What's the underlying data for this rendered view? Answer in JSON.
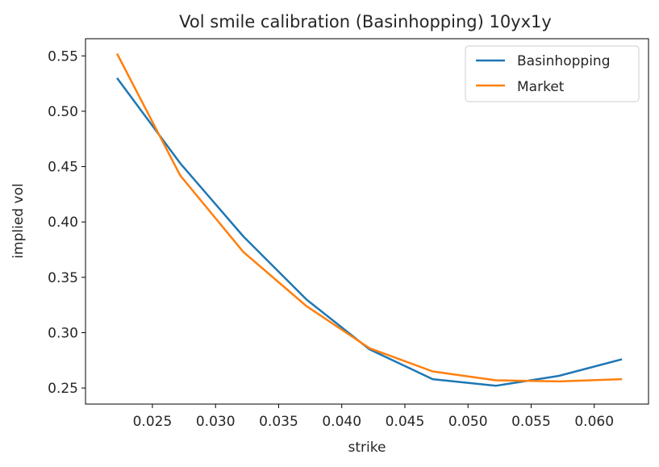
{
  "chart_data": {
    "type": "line",
    "title": "Vol smile calibration (Basinhopping) 10yx1y",
    "xlabel": "strike",
    "ylabel": "implied vol",
    "xlim": [
      0.0197,
      0.0643
    ],
    "ylim": [
      0.2355,
      0.5655
    ],
    "xticks": [
      0.025,
      0.03,
      0.035,
      0.04,
      0.045,
      0.05,
      0.055,
      0.06
    ],
    "xtick_labels": [
      "0.025",
      "0.030",
      "0.035",
      "0.040",
      "0.045",
      "0.050",
      "0.055",
      "0.060"
    ],
    "yticks": [
      0.25,
      0.3,
      0.35,
      0.4,
      0.45,
      0.5,
      0.55
    ],
    "ytick_labels": [
      "0.25",
      "0.30",
      "0.35",
      "0.40",
      "0.45",
      "0.50",
      "0.55"
    ],
    "grid": false,
    "legend": "top-right",
    "x": [
      0.0222,
      0.0272,
      0.0322,
      0.0372,
      0.0422,
      0.0472,
      0.0522,
      0.0572,
      0.0622
    ],
    "series": [
      {
        "name": "Basinhopping",
        "color": "#1f77b4",
        "values": [
          0.53,
          0.453,
          0.387,
          0.33,
          0.285,
          0.258,
          0.252,
          0.261,
          0.276
        ]
      },
      {
        "name": "Market",
        "color": "#ff7f0e",
        "values": [
          0.552,
          0.442,
          0.373,
          0.324,
          0.286,
          0.265,
          0.257,
          0.256,
          0.258
        ]
      }
    ]
  }
}
